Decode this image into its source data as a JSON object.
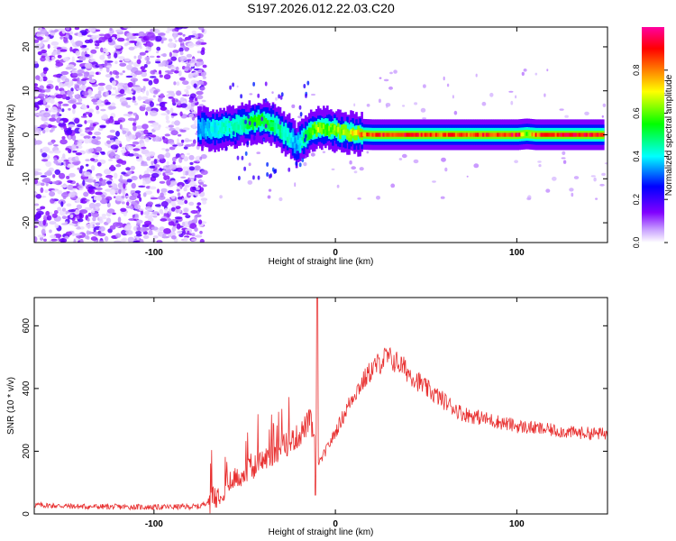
{
  "title": "S197.2026.012.22.03.C20",
  "chart_data": [
    {
      "type": "heatmap",
      "xlabel": "Height of straight line (km)",
      "ylabel": "Frequency (Hz)",
      "xlim": [
        -166,
        150
      ],
      "ylim": [
        -24.5,
        24.5
      ],
      "xticks": [
        -100,
        0,
        100
      ],
      "yticks": [
        -20,
        -10,
        0,
        10,
        20
      ],
      "noise_region_xmax": -78,
      "colorbar": {
        "label": "Normalized spectral amplitude",
        "range": [
          0,
          1
        ],
        "ticks": [
          0.0,
          0.2,
          0.4,
          0.6,
          0.8
        ],
        "colors": [
          "#ffffff",
          "#c8a0ff",
          "#8000ff",
          "#0000ff",
          "#00ffff",
          "#00ff00",
          "#ffff00",
          "#ff8000",
          "#ff0000",
          "#ff00a0"
        ]
      },
      "ridge": {
        "x": [
          -76,
          -65,
          -55,
          -48,
          -42,
          -35,
          -30,
          -25,
          -22,
          -18,
          -14,
          -10,
          -5,
          0,
          10,
          20,
          40,
          60,
          80,
          100,
          105,
          110,
          130,
          148
        ],
        "frequency": [
          1.5,
          1.2,
          2.0,
          2.6,
          3.2,
          2.2,
          0.8,
          -0.5,
          -2.5,
          -0.8,
          0.8,
          1.6,
          1.4,
          1.0,
          0.2,
          0.0,
          0.0,
          0.0,
          0.0,
          0.0,
          0.2,
          0.0,
          0.0,
          0.0
        ],
        "amplitude": [
          0.35,
          0.4,
          0.45,
          0.5,
          0.55,
          0.5,
          0.45,
          0.4,
          0.35,
          0.45,
          0.55,
          0.65,
          0.6,
          0.6,
          0.75,
          0.85,
          0.9,
          0.85,
          0.85,
          0.9,
          0.6,
          0.85,
          0.9,
          0.85
        ]
      }
    },
    {
      "type": "line",
      "xlabel": "Height of straight line (km)",
      "ylabel": "SNR (10 * v/v)",
      "xlim": [
        -166,
        150
      ],
      "ylim": [
        0,
        690
      ],
      "xticks": [
        -100,
        0,
        100
      ],
      "yticks": [
        0,
        200,
        400,
        600
      ],
      "color": "#e83030",
      "envelope": {
        "x": [
          -166,
          -140,
          -100,
          -75,
          -68,
          -60,
          -50,
          -40,
          -30,
          -20,
          -14,
          -11,
          -9,
          0,
          10,
          20,
          28,
          35,
          50,
          70,
          100,
          130,
          150
        ],
        "y": [
          25,
          20,
          18,
          20,
          45,
          90,
          130,
          170,
          210,
          250,
          300,
          230,
          160,
          260,
          380,
          460,
          500,
          480,
          400,
          320,
          280,
          260,
          255
        ]
      },
      "spikes": [
        {
          "x": -10,
          "y": 690
        },
        {
          "x": -11,
          "y": 60
        }
      ]
    }
  ]
}
